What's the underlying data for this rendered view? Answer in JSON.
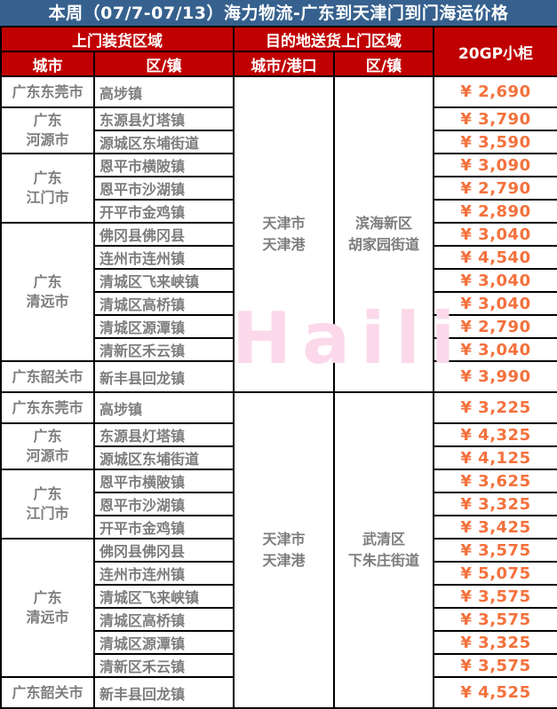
{
  "title": "本周（07/7-07/13）海力物流-广东到天津门到门海运价格",
  "watermark": "Haili",
  "colors": {
    "title_bg": "#36618E",
    "header_bg": "#C00000",
    "header_text": "#FFFFFF",
    "body_text": "#7D7D7D",
    "price_text": "#F4713C",
    "watermark_pink": "#FBD9EA",
    "grid": "#000000"
  },
  "header": {
    "pickup_group": "上门装货区域",
    "delivery_group": "目的地送货上门区域",
    "container_type": "20GP小柜",
    "city": "城市",
    "district": "区/镇",
    "dest_city_port": "城市/港口",
    "dest_district": "区/镇"
  },
  "sections": [
    {
      "dest_city": "天津市\n天津港",
      "dest_district": "滨海新区\n胡家园街道",
      "groups": [
        {
          "city": "广东东莞市",
          "tall": true,
          "rows": [
            {
              "district": "高埗镇",
              "price": "¥ 2,690"
            }
          ]
        },
        {
          "city": "广东\n河源市",
          "rows": [
            {
              "district": "东源县灯塔镇",
              "price": "¥ 3,790"
            },
            {
              "district": "源城区东埔街道",
              "price": "¥ 3,590"
            }
          ]
        },
        {
          "city": "广东\n江门市",
          "rows": [
            {
              "district": "恩平市横陂镇",
              "price": "¥ 3,090"
            },
            {
              "district": "恩平市沙湖镇",
              "price": "¥ 2,790"
            },
            {
              "district": "开平市金鸡镇",
              "price": "¥ 2,890"
            }
          ]
        },
        {
          "city": "广东\n清远市",
          "rows": [
            {
              "district": "佛冈县佛冈县",
              "price": "¥ 3,040"
            },
            {
              "district": "连州市连州镇",
              "price": "¥ 4,540"
            },
            {
              "district": "清城区飞来峡镇",
              "price": "¥ 3,040"
            },
            {
              "district": "清城区高桥镇",
              "price": "¥ 3,040"
            },
            {
              "district": "清城区源潭镇",
              "price": "¥ 2,790"
            },
            {
              "district": "清新区禾云镇",
              "price": "¥ 3,040"
            }
          ]
        },
        {
          "city": "广东韶关市",
          "tall": true,
          "rows": [
            {
              "district": "新丰县回龙镇",
              "price": "¥ 3,990"
            }
          ]
        }
      ]
    },
    {
      "dest_city": "天津市\n天津港",
      "dest_district": "武清区\n下朱庄街道",
      "groups": [
        {
          "city": "广东东莞市",
          "tall": true,
          "rows": [
            {
              "district": "高埗镇",
              "price": "¥ 3,225"
            }
          ]
        },
        {
          "city": "广东\n河源市",
          "rows": [
            {
              "district": "东源县灯塔镇",
              "price": "¥ 4,325"
            },
            {
              "district": "源城区东埔街道",
              "price": "¥ 4,125"
            }
          ]
        },
        {
          "city": "广东\n江门市",
          "rows": [
            {
              "district": "恩平市横陂镇",
              "price": "¥ 3,625"
            },
            {
              "district": "恩平市沙湖镇",
              "price": "¥ 3,325"
            },
            {
              "district": "开平市金鸡镇",
              "price": "¥ 3,425"
            }
          ]
        },
        {
          "city": "广东\n清远市",
          "rows": [
            {
              "district": "佛冈县佛冈县",
              "price": "¥ 3,575"
            },
            {
              "district": "连州市连州镇",
              "price": "¥ 5,075"
            },
            {
              "district": "清城区飞来峡镇",
              "price": "¥ 3,575"
            },
            {
              "district": "清城区高桥镇",
              "price": "¥ 3,575"
            },
            {
              "district": "清城区源潭镇",
              "price": "¥ 3,325"
            },
            {
              "district": "清新区禾云镇",
              "price": "¥ 3,575"
            }
          ]
        },
        {
          "city": "广东韶关市",
          "tall": true,
          "rows": [
            {
              "district": "新丰县回龙镇",
              "price": "¥ 4,525"
            }
          ]
        }
      ]
    }
  ]
}
